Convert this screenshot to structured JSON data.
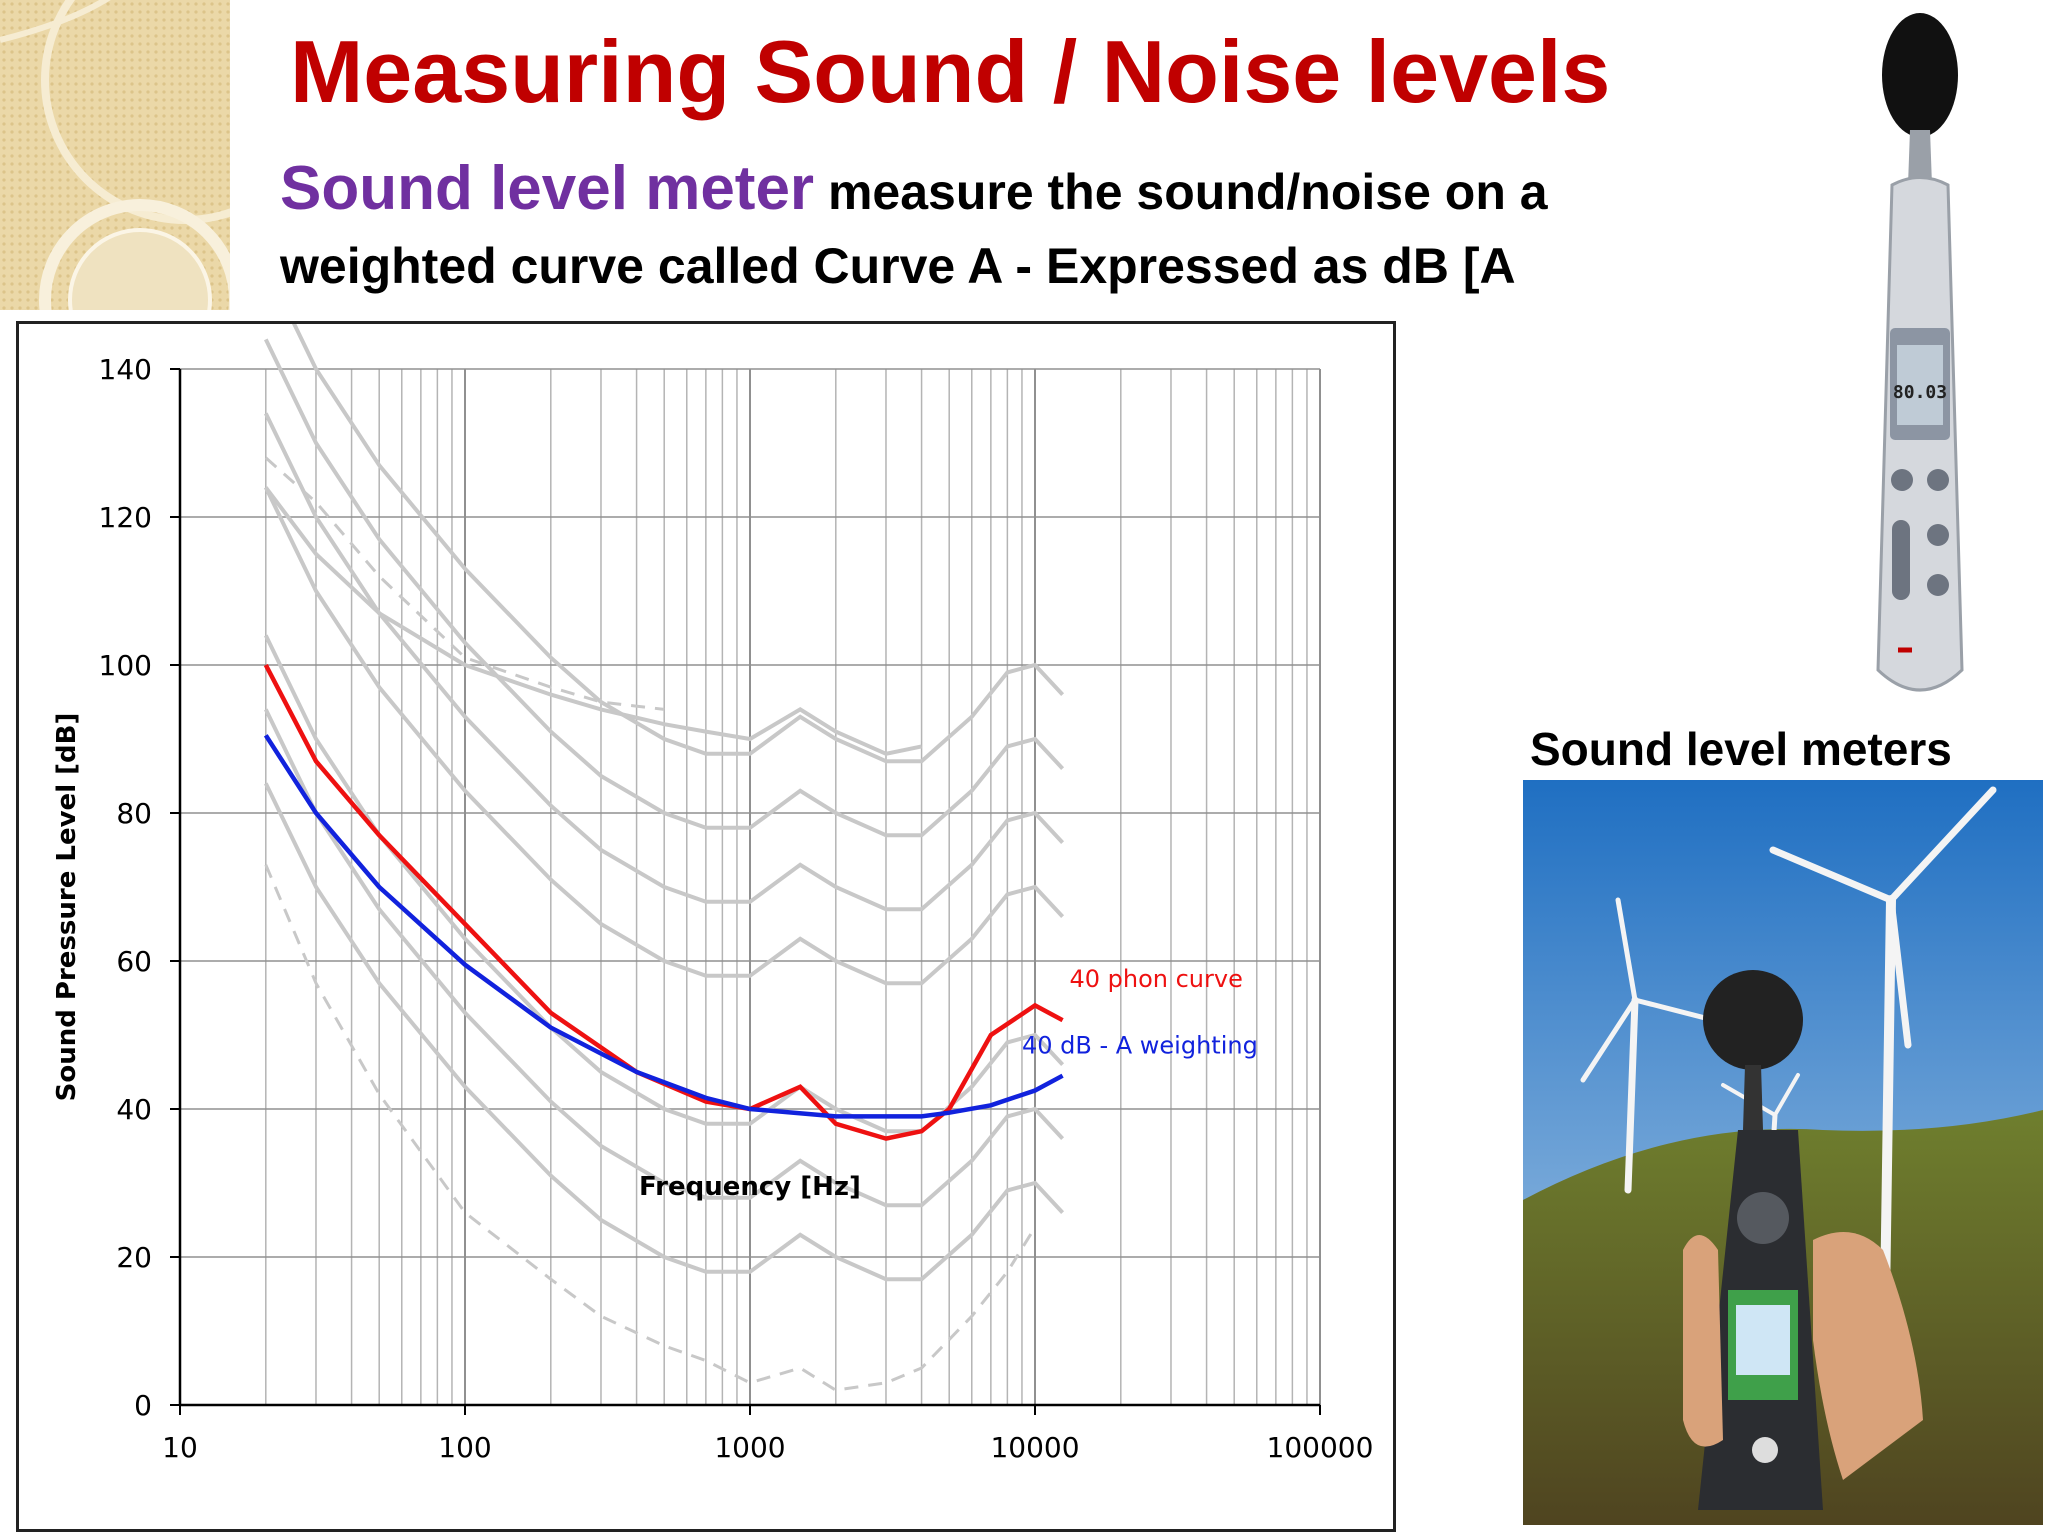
{
  "slide": {
    "title": "Measuring Sound / Noise levels",
    "subtitle_term": "Sound level meter",
    "subtitle_line1": "  measure the sound/noise  on a",
    "subtitle_line2": "weighted curve called Curve A    -  Expressed as  dB [A"
  },
  "device_display": "80.03",
  "photo_caption": "Sound level meters",
  "colors": {
    "title": "#c00000",
    "term": "#7030a0",
    "phon40": "#ee1111",
    "aweight": "#1122dd",
    "contour": "#c8c8c8",
    "grid": "#b4b4b4"
  },
  "chart_data": {
    "type": "line",
    "title": "",
    "xlabel": "Frequency [Hz]",
    "ylabel": "Sound Pressure Level [dB]",
    "x_scale": "log",
    "xlim": [
      10,
      100000
    ],
    "ylim": [
      0,
      140
    ],
    "x_ticks": [
      "10",
      "100",
      "1000",
      "10000",
      "100000"
    ],
    "y_ticks": [
      "0",
      "20",
      "40",
      "60",
      "80",
      "100",
      "120",
      "140"
    ],
    "grid": true,
    "legend": "inline labels at right end of curves",
    "series": [
      {
        "name": "40 phon curve",
        "color": "#ee1111",
        "x": [
          20,
          30,
          50,
          100,
          200,
          400,
          700,
          1000,
          1500,
          2000,
          3000,
          4000,
          5000,
          7000,
          10000,
          12500
        ],
        "y": [
          100,
          87,
          77,
          65,
          53,
          45,
          41,
          40,
          43,
          38,
          36,
          37,
          40,
          50,
          54,
          52
        ]
      },
      {
        "name": "40 dB - A weighting",
        "color": "#1122dd",
        "x": [
          20,
          30,
          50,
          100,
          200,
          400,
          700,
          1000,
          2000,
          3000,
          4000,
          5000,
          7000,
          10000,
          12500
        ],
        "y": [
          90.5,
          80,
          70,
          59.5,
          51,
          45,
          41.5,
          40,
          39,
          39,
          39,
          39.5,
          40.5,
          42.5,
          44.5
        ]
      }
    ],
    "contours": {
      "x": [
        20,
        30,
        50,
        100,
        200,
        300,
        500,
        700,
        1000,
        1500,
        2000,
        3000,
        4000,
        6000,
        8000,
        10000,
        12500
      ],
      "shape": [
        74,
        60,
        47,
        33,
        21,
        15,
        10,
        8,
        8,
        13,
        10,
        7,
        7,
        13,
        19,
        20,
        16
      ],
      "offsets": [
        10,
        20,
        30,
        50,
        60,
        70,
        80
      ],
      "top_contour": {
        "x": [
          20,
          30,
          50,
          100,
          200,
          300,
          500,
          700,
          1000,
          1500,
          2000,
          3000,
          4000
        ],
        "y": [
          124,
          115,
          107,
          100,
          96,
          94,
          92,
          91,
          90,
          94,
          91,
          88,
          89
        ]
      },
      "bottom_dashed": {
        "x": [
          20,
          30,
          50,
          100,
          200,
          300,
          500,
          700,
          1000,
          1500,
          2000,
          3000,
          4000,
          6000,
          8000,
          10000
        ],
        "y": [
          73,
          57,
          42,
          26,
          17,
          12,
          8,
          6,
          3,
          5,
          2,
          3,
          5,
          12,
          18,
          24
        ]
      },
      "upper_dashed": {
        "x": [
          20,
          30,
          50,
          100,
          200,
          300,
          500
        ],
        "y": [
          128,
          122,
          112,
          101,
          97,
          95,
          94
        ]
      }
    }
  }
}
